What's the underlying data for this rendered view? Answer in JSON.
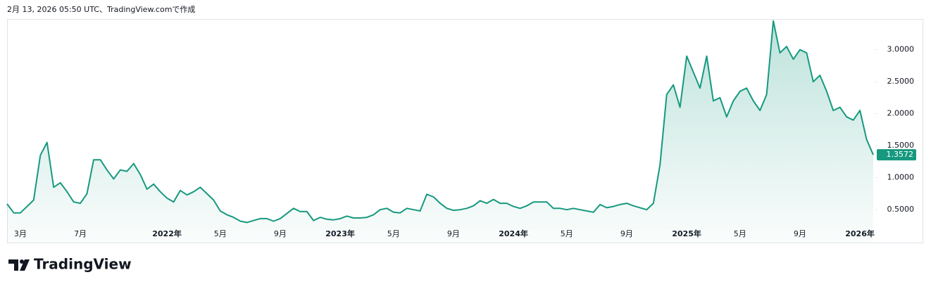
{
  "header": {
    "caption": "2月 13, 2026 05:50 UTC、TradingView.comで作成"
  },
  "footer": {
    "logo": "TradingView"
  },
  "chart_data": {
    "type": "area",
    "categories": [
      null,
      null,
      "3月",
      null,
      null,
      null,
      null,
      null,
      null,
      null,
      null,
      "7月",
      null,
      null,
      null,
      null,
      null,
      null,
      null,
      null,
      null,
      null,
      null,
      null,
      "2022年",
      null,
      null,
      null,
      null,
      null,
      null,
      null,
      "5月",
      null,
      null,
      null,
      null,
      null,
      null,
      null,
      null,
      "9月",
      null,
      null,
      null,
      null,
      null,
      null,
      null,
      null,
      "2023年",
      null,
      null,
      null,
      null,
      null,
      null,
      null,
      "5月",
      null,
      null,
      null,
      null,
      null,
      null,
      null,
      null,
      "9月",
      null,
      null,
      null,
      null,
      null,
      null,
      null,
      null,
      "2024年",
      null,
      null,
      null,
      null,
      null,
      null,
      null,
      "5月",
      null,
      null,
      null,
      null,
      null,
      null,
      null,
      null,
      "9月",
      null,
      null,
      null,
      null,
      null,
      null,
      null,
      null,
      "2025年",
      null,
      null,
      null,
      null,
      null,
      null,
      null,
      "5月",
      null,
      null,
      null,
      null,
      null,
      null,
      null,
      null,
      "9月",
      null,
      null,
      null,
      null,
      null,
      null,
      null,
      null,
      "2026年",
      null,
      null
    ],
    "series": [
      {
        "color": "#16997f",
        "values": [
          0.59,
          0.45,
          0.45,
          0.55,
          0.65,
          1.35,
          1.55,
          0.85,
          0.92,
          0.78,
          0.62,
          0.6,
          0.75,
          1.28,
          1.28,
          1.12,
          0.98,
          1.12,
          1.1,
          1.22,
          1.05,
          0.82,
          0.9,
          0.78,
          0.68,
          0.62,
          0.8,
          0.73,
          0.78,
          0.85,
          0.75,
          0.65,
          0.48,
          0.42,
          0.38,
          0.32,
          0.3,
          0.33,
          0.36,
          0.36,
          0.32,
          0.36,
          0.44,
          0.52,
          0.47,
          0.47,
          0.33,
          0.38,
          0.35,
          0.34,
          0.36,
          0.4,
          0.37,
          0.37,
          0.38,
          0.42,
          0.5,
          0.52,
          0.46,
          0.45,
          0.52,
          0.5,
          0.48,
          0.74,
          0.7,
          0.6,
          0.52,
          0.49,
          0.5,
          0.52,
          0.56,
          0.64,
          0.6,
          0.66,
          0.6,
          0.6,
          0.55,
          0.52,
          0.56,
          0.62,
          0.62,
          0.62,
          0.52,
          0.52,
          0.5,
          0.52,
          0.5,
          0.48,
          0.46,
          0.58,
          0.53,
          0.55,
          0.58,
          0.6,
          0.56,
          0.53,
          0.5,
          0.6,
          1.2,
          2.3,
          2.45,
          2.1,
          2.9,
          2.65,
          2.4,
          2.9,
          2.2,
          2.25,
          1.95,
          2.2,
          2.35,
          2.4,
          2.2,
          2.05,
          2.3,
          3.45,
          2.95,
          3.05,
          2.85,
          3.0,
          2.95,
          2.5,
          2.6,
          2.35,
          2.05,
          2.1,
          1.95,
          1.9,
          2.05,
          1.6,
          1.3572
        ]
      }
    ],
    "ylim": [
      0.26,
      3.48
    ],
    "yticks": [
      {
        "value": 0.5,
        "label": "0.5000"
      },
      {
        "value": 1.0,
        "label": "1.0000"
      },
      {
        "value": 1.5,
        "label": "1.5000"
      },
      {
        "value": 2.0,
        "label": "2.0000"
      },
      {
        "value": 2.5,
        "label": "2.5000"
      },
      {
        "value": 3.0,
        "label": "3.0000"
      }
    ],
    "grid": false
  }
}
